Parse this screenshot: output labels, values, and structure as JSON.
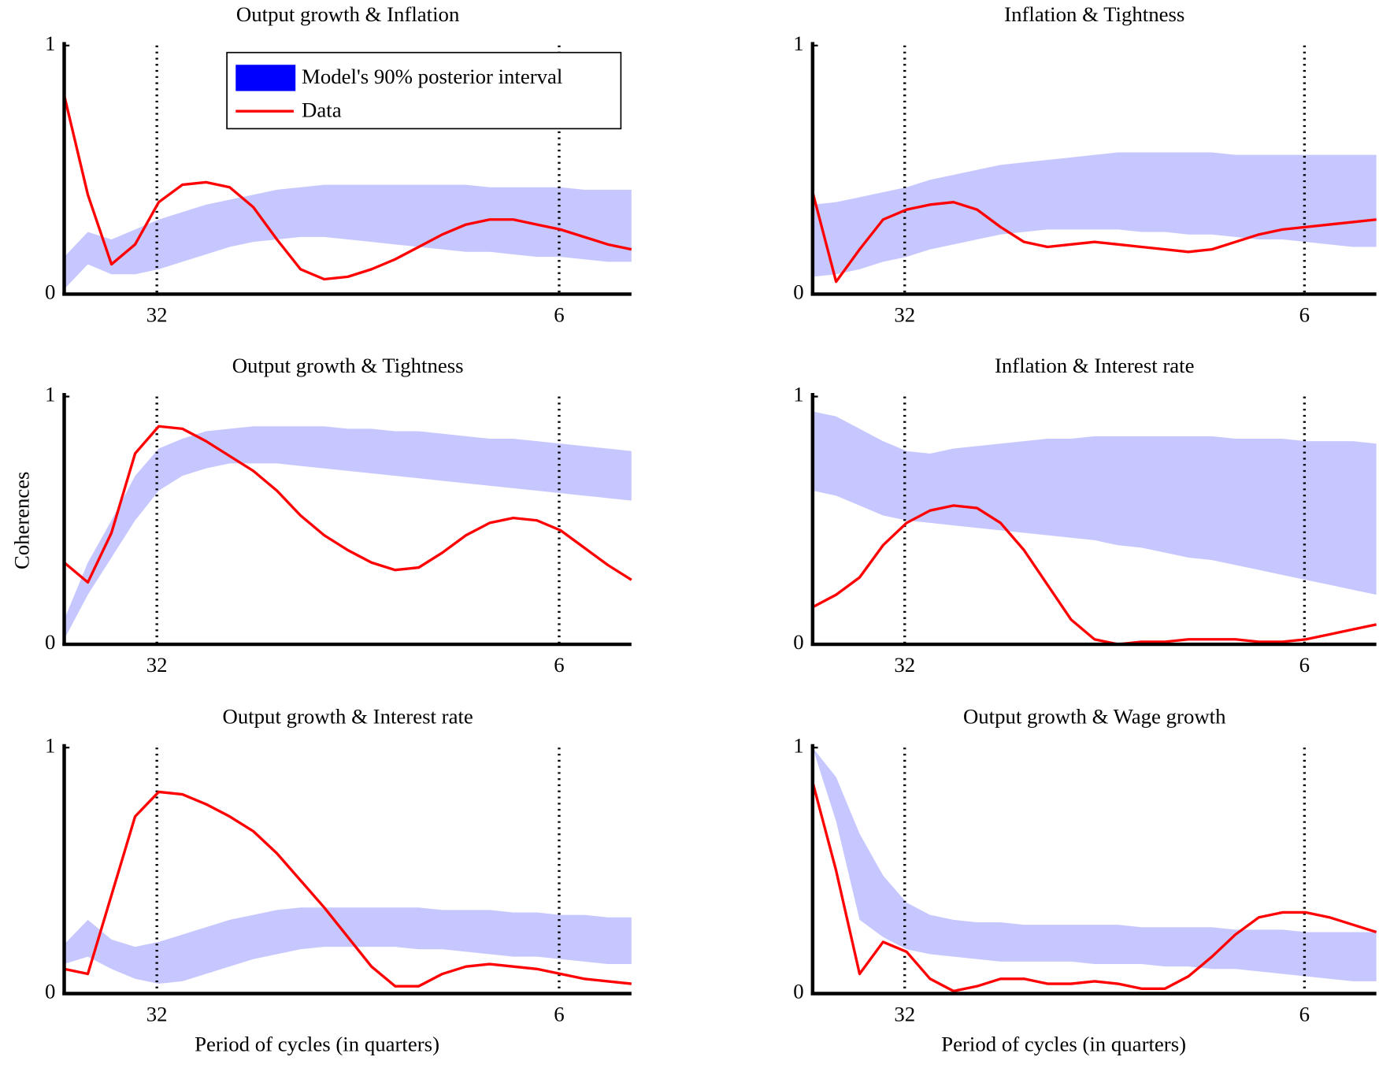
{
  "chart_data": [
    {
      "type": "band-line",
      "title": "Output growth & Inflation",
      "x": [
        0,
        0.05,
        0.1,
        0.15,
        0.2,
        0.25,
        0.3,
        0.35,
        0.4,
        0.45,
        0.5,
        0.55,
        0.6,
        0.65,
        0.7,
        0.75,
        0.8,
        0.85,
        0.9,
        0.95,
        1.0,
        1.05,
        1.1,
        1.15,
        1.2
      ],
      "xlim": [
        0,
        1.2
      ],
      "xticks": [
        {
          "value": 0.196,
          "label": "32"
        },
        {
          "value": 1.047,
          "label": "6"
        }
      ],
      "ylim": [
        0,
        1
      ],
      "yticks": [
        0,
        1
      ],
      "legend": "upper right",
      "series": [
        {
          "name": "Model's 90% posterior interval",
          "color": "#0000ff",
          "lower": [
            0.02,
            0.12,
            0.08,
            0.08,
            0.1,
            0.13,
            0.16,
            0.19,
            0.21,
            0.22,
            0.23,
            0.23,
            0.22,
            0.21,
            0.2,
            0.19,
            0.18,
            0.17,
            0.17,
            0.16,
            0.15,
            0.15,
            0.14,
            0.13,
            0.13
          ],
          "upper": [
            0.15,
            0.25,
            0.22,
            0.26,
            0.3,
            0.33,
            0.36,
            0.38,
            0.4,
            0.42,
            0.43,
            0.44,
            0.44,
            0.44,
            0.44,
            0.44,
            0.44,
            0.44,
            0.43,
            0.43,
            0.43,
            0.43,
            0.42,
            0.42,
            0.42
          ]
        },
        {
          "name": "Data",
          "color": "#ff0000",
          "values": [
            0.8,
            0.4,
            0.12,
            0.2,
            0.37,
            0.44,
            0.45,
            0.43,
            0.35,
            0.22,
            0.1,
            0.06,
            0.07,
            0.1,
            0.14,
            0.19,
            0.24,
            0.28,
            0.3,
            0.3,
            0.28,
            0.26,
            0.23,
            0.2,
            0.18
          ]
        }
      ]
    },
    {
      "type": "band-line",
      "title": "Inflation & Tightness",
      "x": [
        0,
        0.05,
        0.1,
        0.15,
        0.2,
        0.25,
        0.3,
        0.35,
        0.4,
        0.45,
        0.5,
        0.55,
        0.6,
        0.65,
        0.7,
        0.75,
        0.8,
        0.85,
        0.9,
        0.95,
        1.0,
        1.05,
        1.1,
        1.15,
        1.2
      ],
      "xlim": [
        0,
        1.2
      ],
      "xticks": [
        {
          "value": 0.196,
          "label": "32"
        },
        {
          "value": 1.047,
          "label": "6"
        }
      ],
      "ylim": [
        0,
        1
      ],
      "yticks": [
        0,
        1
      ],
      "series": [
        {
          "color": "#0000ff",
          "lower": [
            0.07,
            0.08,
            0.1,
            0.13,
            0.15,
            0.18,
            0.2,
            0.22,
            0.24,
            0.25,
            0.26,
            0.26,
            0.26,
            0.26,
            0.25,
            0.25,
            0.24,
            0.24,
            0.23,
            0.22,
            0.22,
            0.21,
            0.2,
            0.19,
            0.19
          ],
          "upper": [
            0.36,
            0.37,
            0.39,
            0.41,
            0.43,
            0.46,
            0.48,
            0.5,
            0.52,
            0.53,
            0.54,
            0.55,
            0.56,
            0.57,
            0.57,
            0.57,
            0.57,
            0.57,
            0.56,
            0.56,
            0.56,
            0.56,
            0.56,
            0.56,
            0.56
          ]
        },
        {
          "color": "#ff0000",
          "values": [
            0.41,
            0.05,
            0.18,
            0.3,
            0.34,
            0.36,
            0.37,
            0.34,
            0.27,
            0.21,
            0.19,
            0.2,
            0.21,
            0.2,
            0.19,
            0.18,
            0.17,
            0.18,
            0.21,
            0.24,
            0.26,
            0.27,
            0.28,
            0.29,
            0.3
          ]
        }
      ]
    },
    {
      "type": "band-line",
      "title": "Output growth & Tightness",
      "y_label": "Coherences",
      "x": [
        0,
        0.05,
        0.1,
        0.15,
        0.2,
        0.25,
        0.3,
        0.35,
        0.4,
        0.45,
        0.5,
        0.55,
        0.6,
        0.65,
        0.7,
        0.75,
        0.8,
        0.85,
        0.9,
        0.95,
        1.0,
        1.05,
        1.1,
        1.15,
        1.2
      ],
      "xlim": [
        0,
        1.2
      ],
      "xticks": [
        {
          "value": 0.196,
          "label": "32"
        },
        {
          "value": 1.047,
          "label": "6"
        }
      ],
      "ylim": [
        0,
        1
      ],
      "yticks": [
        0,
        1
      ],
      "series": [
        {
          "color": "#0000ff",
          "lower": [
            0.02,
            0.2,
            0.35,
            0.5,
            0.62,
            0.68,
            0.71,
            0.73,
            0.73,
            0.73,
            0.72,
            0.71,
            0.7,
            0.69,
            0.68,
            0.67,
            0.66,
            0.65,
            0.64,
            0.63,
            0.62,
            0.61,
            0.6,
            0.59,
            0.58
          ],
          "upper": [
            0.1,
            0.33,
            0.5,
            0.68,
            0.79,
            0.83,
            0.86,
            0.87,
            0.88,
            0.88,
            0.88,
            0.88,
            0.87,
            0.87,
            0.86,
            0.86,
            0.85,
            0.84,
            0.83,
            0.83,
            0.82,
            0.81,
            0.8,
            0.79,
            0.78
          ]
        },
        {
          "color": "#ff0000",
          "values": [
            0.33,
            0.25,
            0.45,
            0.77,
            0.88,
            0.87,
            0.82,
            0.76,
            0.7,
            0.62,
            0.52,
            0.44,
            0.38,
            0.33,
            0.3,
            0.31,
            0.37,
            0.44,
            0.49,
            0.51,
            0.5,
            0.46,
            0.39,
            0.32,
            0.26
          ]
        }
      ]
    },
    {
      "type": "band-line",
      "title": "Inflation & Interest rate",
      "x": [
        0,
        0.05,
        0.1,
        0.15,
        0.2,
        0.25,
        0.3,
        0.35,
        0.4,
        0.45,
        0.5,
        0.55,
        0.6,
        0.65,
        0.7,
        0.75,
        0.8,
        0.85,
        0.9,
        0.95,
        1.0,
        1.05,
        1.1,
        1.15,
        1.2
      ],
      "xlim": [
        0,
        1.2
      ],
      "xticks": [
        {
          "value": 0.196,
          "label": "32"
        },
        {
          "value": 1.047,
          "label": "6"
        }
      ],
      "ylim": [
        0,
        1
      ],
      "yticks": [
        0,
        1
      ],
      "series": [
        {
          "color": "#0000ff",
          "lower": [
            0.62,
            0.6,
            0.56,
            0.52,
            0.5,
            0.49,
            0.48,
            0.47,
            0.46,
            0.45,
            0.44,
            0.43,
            0.42,
            0.4,
            0.39,
            0.37,
            0.35,
            0.34,
            0.32,
            0.3,
            0.28,
            0.26,
            0.24,
            0.22,
            0.2
          ],
          "upper": [
            0.94,
            0.92,
            0.87,
            0.82,
            0.78,
            0.77,
            0.79,
            0.8,
            0.81,
            0.82,
            0.83,
            0.83,
            0.84,
            0.84,
            0.84,
            0.84,
            0.84,
            0.84,
            0.83,
            0.83,
            0.83,
            0.82,
            0.82,
            0.82,
            0.81
          ]
        },
        {
          "color": "#ff0000",
          "values": [
            0.15,
            0.2,
            0.27,
            0.4,
            0.49,
            0.54,
            0.56,
            0.55,
            0.49,
            0.38,
            0.24,
            0.1,
            0.02,
            0.0,
            0.01,
            0.01,
            0.02,
            0.02,
            0.02,
            0.01,
            0.01,
            0.02,
            0.04,
            0.06,
            0.08
          ]
        }
      ]
    },
    {
      "type": "band-line",
      "title": "Output growth & Interest rate",
      "x_label": "Period of cycles (in quarters)",
      "x": [
        0,
        0.05,
        0.1,
        0.15,
        0.2,
        0.25,
        0.3,
        0.35,
        0.4,
        0.45,
        0.5,
        0.55,
        0.6,
        0.65,
        0.7,
        0.75,
        0.8,
        0.85,
        0.9,
        0.95,
        1.0,
        1.05,
        1.1,
        1.15,
        1.2
      ],
      "xlim": [
        0,
        1.2
      ],
      "xticks": [
        {
          "value": 0.196,
          "label": "32"
        },
        {
          "value": 1.047,
          "label": "6"
        }
      ],
      "ylim": [
        0,
        1
      ],
      "yticks": [
        0,
        1
      ],
      "series": [
        {
          "color": "#0000ff",
          "lower": [
            0.12,
            0.15,
            0.1,
            0.06,
            0.04,
            0.05,
            0.08,
            0.11,
            0.14,
            0.16,
            0.18,
            0.19,
            0.19,
            0.19,
            0.19,
            0.18,
            0.18,
            0.17,
            0.16,
            0.15,
            0.15,
            0.14,
            0.13,
            0.12,
            0.12
          ],
          "upper": [
            0.2,
            0.3,
            0.22,
            0.19,
            0.21,
            0.24,
            0.27,
            0.3,
            0.32,
            0.34,
            0.35,
            0.35,
            0.35,
            0.35,
            0.35,
            0.35,
            0.34,
            0.34,
            0.34,
            0.33,
            0.33,
            0.32,
            0.32,
            0.31,
            0.31
          ]
        },
        {
          "color": "#ff0000",
          "values": [
            0.1,
            0.08,
            0.4,
            0.72,
            0.82,
            0.81,
            0.77,
            0.72,
            0.66,
            0.57,
            0.46,
            0.35,
            0.23,
            0.11,
            0.03,
            0.03,
            0.08,
            0.11,
            0.12,
            0.11,
            0.1,
            0.08,
            0.06,
            0.05,
            0.04
          ]
        }
      ]
    },
    {
      "type": "band-line",
      "title": "Output growth & Wage growth",
      "x_label": "Period of cycles (in quarters)",
      "x": [
        0,
        0.05,
        0.1,
        0.15,
        0.2,
        0.25,
        0.3,
        0.35,
        0.4,
        0.45,
        0.5,
        0.55,
        0.6,
        0.65,
        0.7,
        0.75,
        0.8,
        0.85,
        0.9,
        0.95,
        1.0,
        1.05,
        1.1,
        1.15,
        1.2
      ],
      "xlim": [
        0,
        1.2
      ],
      "xticks": [
        {
          "value": 0.196,
          "label": "32"
        },
        {
          "value": 1.047,
          "label": "6"
        }
      ],
      "ylim": [
        0,
        1
      ],
      "yticks": [
        0,
        1
      ],
      "series": [
        {
          "color": "#0000ff",
          "lower": [
            1.0,
            0.7,
            0.3,
            0.23,
            0.18,
            0.16,
            0.15,
            0.14,
            0.13,
            0.13,
            0.13,
            0.13,
            0.12,
            0.12,
            0.12,
            0.11,
            0.11,
            0.1,
            0.1,
            0.09,
            0.08,
            0.07,
            0.06,
            0.05,
            0.05
          ],
          "upper": [
            1.0,
            0.88,
            0.65,
            0.48,
            0.37,
            0.32,
            0.3,
            0.29,
            0.29,
            0.28,
            0.28,
            0.28,
            0.28,
            0.28,
            0.27,
            0.27,
            0.27,
            0.27,
            0.26,
            0.26,
            0.26,
            0.25,
            0.25,
            0.25,
            0.25
          ]
        },
        {
          "color": "#ff0000",
          "values": [
            0.86,
            0.5,
            0.08,
            0.21,
            0.17,
            0.06,
            0.01,
            0.03,
            0.06,
            0.06,
            0.04,
            0.04,
            0.05,
            0.04,
            0.02,
            0.02,
            0.07,
            0.15,
            0.24,
            0.31,
            0.33,
            0.33,
            0.31,
            0.28,
            0.25
          ]
        }
      ]
    }
  ]
}
